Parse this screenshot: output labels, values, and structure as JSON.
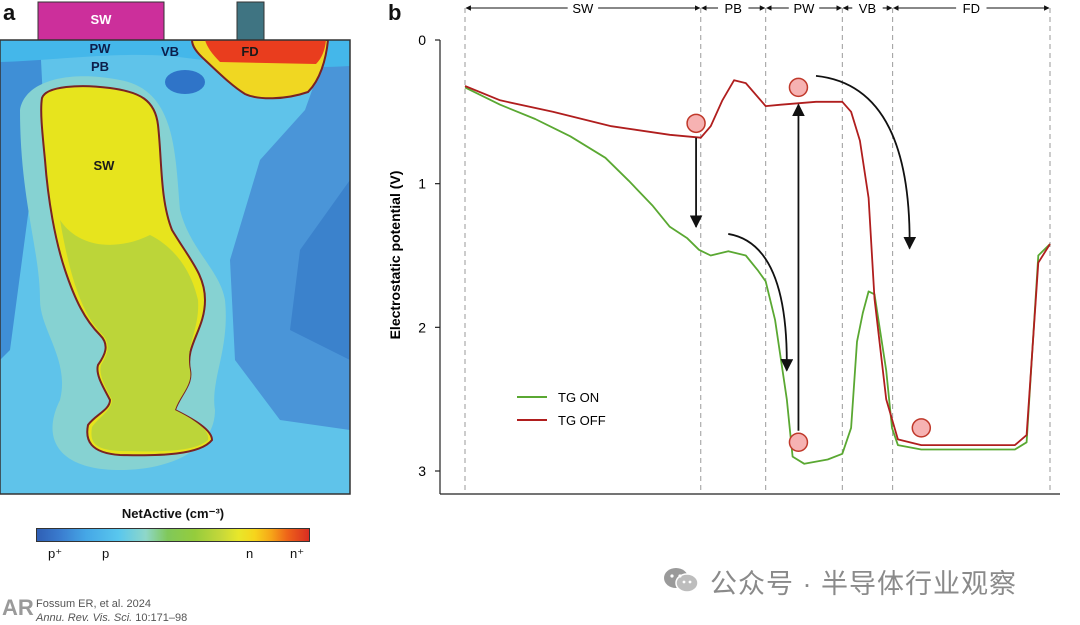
{
  "panel_a": {
    "label": "a",
    "gates": {
      "sw": "SW"
    },
    "regions": {
      "pw": "PW",
      "pb": "PB",
      "vb": "VB",
      "fd": "FD",
      "sw": "SW"
    },
    "colorbar": {
      "title": "NetActive (cm⁻³)",
      "ticks": [
        "p⁺",
        "p",
        "n",
        "n⁺"
      ]
    }
  },
  "panel_b": {
    "label": "b",
    "regions": [
      "SW",
      "PB",
      "PW",
      "VB",
      "FD"
    ],
    "ylabel": "Electrostatic potential (V)",
    "yticks": [
      "0",
      "1",
      "2",
      "3"
    ],
    "legend": [
      "TG ON",
      "TG OFF"
    ]
  },
  "credit": {
    "authors": "Fossum ER, et al. 2024",
    "journal": "Annu. Rev. Vis. Sci.",
    "pages": "10:171–98"
  },
  "publisher_logo": "AR",
  "watermark": "公众号 · 半导体行业观察",
  "colors": {
    "tg_on": "#5aa832",
    "tg_off": "#b01e1e",
    "marker_fill": "#f6b2b2",
    "marker_stroke": "#c0392b"
  },
  "chart_data": {
    "type": "line",
    "xlabel": "",
    "ylabel": "Electrostatic potential (V)",
    "ylim": [
      3.15,
      0
    ],
    "xlim": [
      0,
      1
    ],
    "yaxis_inverted": true,
    "region_bounds": [
      0,
      0.403,
      0.514,
      0.645,
      0.731,
      1.0
    ],
    "series": [
      {
        "name": "TG ON",
        "x": [
          0,
          0.06,
          0.12,
          0.18,
          0.24,
          0.28,
          0.32,
          0.35,
          0.38,
          0.4,
          0.42,
          0.45,
          0.48,
          0.5,
          0.514,
          0.53,
          0.55,
          0.56,
          0.58,
          0.62,
          0.645,
          0.66,
          0.67,
          0.68,
          0.69,
          0.7,
          0.72,
          0.73,
          0.74,
          0.78,
          0.85,
          0.94,
          0.96,
          0.98,
          1.0
        ],
        "y": [
          0.33,
          0.45,
          0.55,
          0.67,
          0.82,
          0.98,
          1.15,
          1.3,
          1.38,
          1.46,
          1.5,
          1.47,
          1.5,
          1.6,
          1.68,
          1.95,
          2.5,
          2.9,
          2.95,
          2.92,
          2.88,
          2.7,
          2.1,
          1.9,
          1.75,
          1.77,
          2.3,
          2.7,
          2.82,
          2.85,
          2.85,
          2.85,
          2.8,
          1.5,
          1.42
        ]
      },
      {
        "name": "TG OFF",
        "x": [
          0,
          0.06,
          0.15,
          0.25,
          0.35,
          0.403,
          0.42,
          0.44,
          0.46,
          0.48,
          0.514,
          0.54,
          0.6,
          0.645,
          0.66,
          0.675,
          0.69,
          0.7,
          0.72,
          0.74,
          0.78,
          0.85,
          0.94,
          0.96,
          0.98,
          1.0
        ],
        "y": [
          0.32,
          0.42,
          0.5,
          0.6,
          0.66,
          0.68,
          0.6,
          0.42,
          0.28,
          0.3,
          0.46,
          0.45,
          0.43,
          0.43,
          0.5,
          0.7,
          1.1,
          1.8,
          2.5,
          2.78,
          2.82,
          2.82,
          2.82,
          2.75,
          1.55,
          1.42
        ]
      }
    ],
    "markers": [
      {
        "x": 0.395,
        "y": 0.58
      },
      {
        "x": 0.57,
        "y": 0.33
      },
      {
        "x": 0.57,
        "y": 2.8
      },
      {
        "x": 0.78,
        "y": 2.7
      }
    ],
    "arrows": [
      {
        "from": [
          0.395,
          0.68
        ],
        "to": [
          0.395,
          1.3
        ],
        "style": "straight"
      },
      {
        "from": [
          0.45,
          1.35
        ],
        "to": [
          0.55,
          2.3
        ],
        "style": "curved"
      },
      {
        "from": [
          0.57,
          2.72
        ],
        "to": [
          0.57,
          0.45
        ],
        "style": "straight"
      },
      {
        "from": [
          0.6,
          0.25
        ],
        "to": [
          0.76,
          1.45
        ],
        "style": "curved"
      }
    ]
  }
}
